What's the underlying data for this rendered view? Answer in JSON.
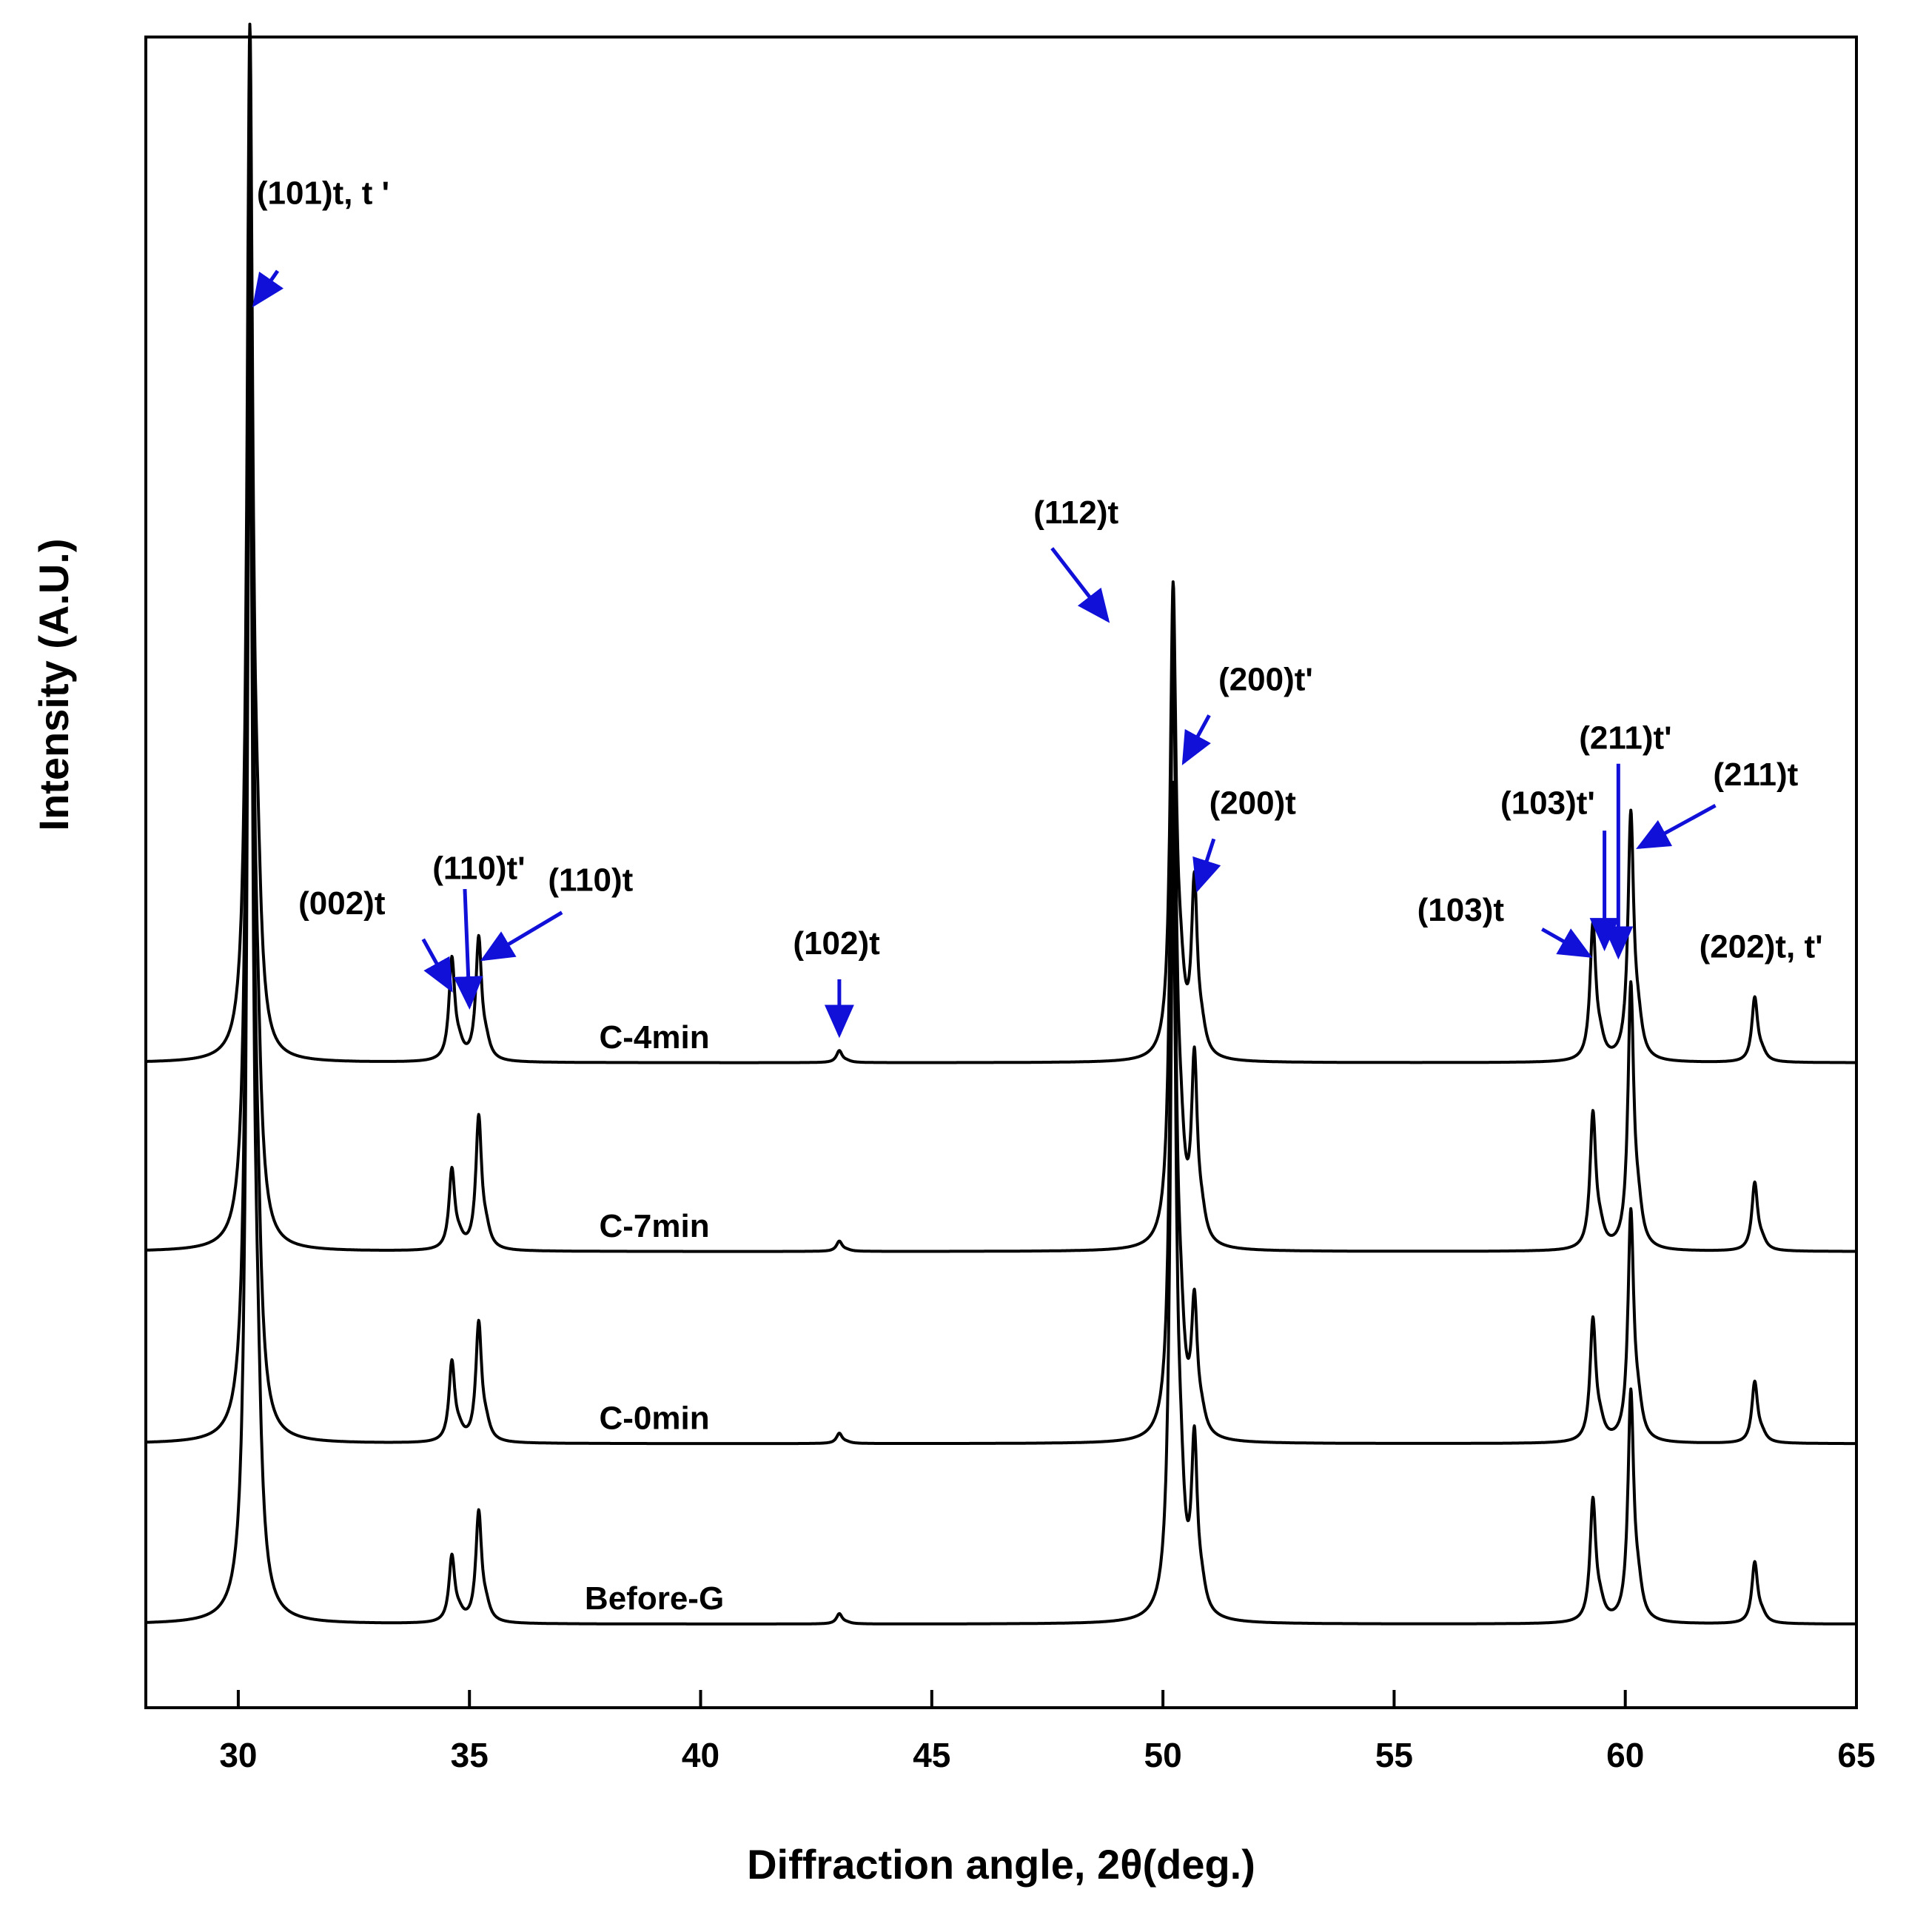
{
  "chart_data": {
    "type": "line",
    "title": "",
    "xlabel": "Diffraction angle, 2θ(deg.)",
    "ylabel": "Intensity (A.U.)",
    "xlim": [
      28,
      65
    ],
    "ylim": [
      0,
      1
    ],
    "xticks": [
      30,
      35,
      40,
      45,
      50,
      55,
      60,
      65
    ],
    "grid": false,
    "legend": "none",
    "colors": {
      "line": "#000000",
      "arrow": "#1010d8"
    },
    "series": [
      {
        "name": "C-4min",
        "baseline": 0.386,
        "label_x": 39.0,
        "peaks": [
          {
            "x": 30.25,
            "h": 0.6
          },
          {
            "x": 34.62,
            "h": 0.06
          },
          {
            "x": 35.2,
            "h": 0.072
          },
          {
            "x": 43.0,
            "h": 0.007
          },
          {
            "x": 50.22,
            "h": 0.275
          },
          {
            "x": 50.68,
            "h": 0.1
          },
          {
            "x": 59.3,
            "h": 0.08
          },
          {
            "x": 60.12,
            "h": 0.145
          },
          {
            "x": 62.8,
            "h": 0.038
          }
        ]
      },
      {
        "name": "C-7min",
        "baseline": 0.273,
        "label_x": 39.0,
        "peaks": [
          {
            "x": 30.25,
            "h": 0.64
          },
          {
            "x": 34.62,
            "h": 0.047
          },
          {
            "x": 35.2,
            "h": 0.078
          },
          {
            "x": 43.0,
            "h": 0.006
          },
          {
            "x": 50.22,
            "h": 0.35
          },
          {
            "x": 50.68,
            "h": 0.105
          },
          {
            "x": 59.3,
            "h": 0.08
          },
          {
            "x": 60.12,
            "h": 0.155
          },
          {
            "x": 62.8,
            "h": 0.04
          }
        ]
      },
      {
        "name": "C-0min",
        "baseline": 0.158,
        "label_x": 39.0,
        "peaks": [
          {
            "x": 30.25,
            "h": 0.7
          },
          {
            "x": 34.62,
            "h": 0.047
          },
          {
            "x": 35.2,
            "h": 0.07
          },
          {
            "x": 43.0,
            "h": 0.006
          },
          {
            "x": 50.22,
            "h": 0.38
          },
          {
            "x": 50.68,
            "h": 0.075
          },
          {
            "x": 59.3,
            "h": 0.072
          },
          {
            "x": 60.12,
            "h": 0.135
          },
          {
            "x": 62.8,
            "h": 0.036
          }
        ]
      },
      {
        "name": "Before-G",
        "baseline": 0.05,
        "label_x": 39.0,
        "peaks": [
          {
            "x": 30.25,
            "h": 0.75
          },
          {
            "x": 34.62,
            "h": 0.039
          },
          {
            "x": 35.2,
            "h": 0.065
          },
          {
            "x": 43.0,
            "h": 0.006
          },
          {
            "x": 50.22,
            "h": 0.44
          },
          {
            "x": 50.68,
            "h": 0.098
          },
          {
            "x": 59.3,
            "h": 0.072
          },
          {
            "x": 60.12,
            "h": 0.135
          },
          {
            "x": 62.8,
            "h": 0.036
          }
        ]
      }
    ],
    "annotations": [
      {
        "text": "(101)t, t '",
        "tx": 30.4,
        "ty": 0.9,
        "ax": 30.85,
        "ay": 0.86,
        "bx": 30.35,
        "by": 0.84
      },
      {
        "text": "(002)t",
        "tx": 31.3,
        "ty": 0.475,
        "ax": 34.0,
        "ay": 0.46,
        "bx": 34.6,
        "by": 0.43
      },
      {
        "text": "(110)t'",
        "tx": 34.2,
        "ty": 0.496,
        "ax": 34.9,
        "ay": 0.49,
        "bx": 35.0,
        "by": 0.42
      },
      {
        "text": "(110)t",
        "tx": 36.7,
        "ty": 0.489,
        "ax": 37.0,
        "ay": 0.476,
        "bx": 35.3,
        "by": 0.448
      },
      {
        "text": "(102)t",
        "tx": 42.0,
        "ty": 0.451,
        "ax": 43.0,
        "ay": 0.436,
        "bx": 43.0,
        "by": 0.403
      },
      {
        "text": "(112)t",
        "tx": 47.2,
        "ty": 0.709,
        "ax": 47.6,
        "ay": 0.694,
        "bx": 48.8,
        "by": 0.651
      },
      {
        "text": "(200)t'",
        "tx": 51.2,
        "ty": 0.609,
        "ax": 51.0,
        "ay": 0.594,
        "bx": 50.45,
        "by": 0.566
      },
      {
        "text": "(200)t",
        "tx": 51.0,
        "ty": 0.535,
        "ax": 51.1,
        "ay": 0.52,
        "bx": 50.75,
        "by": 0.49
      },
      {
        "text": "(103)t",
        "tx": 55.5,
        "ty": 0.471,
        "ax": 58.2,
        "ay": 0.466,
        "bx": 59.22,
        "by": 0.45
      },
      {
        "text": "(103)t'",
        "tx": 57.3,
        "ty": 0.535,
        "ax": 59.55,
        "ay": 0.525,
        "bx": 59.55,
        "by": 0.455
      },
      {
        "text": "(211)t'",
        "tx": 59.0,
        "ty": 0.574,
        "ax": 59.85,
        "ay": 0.565,
        "bx": 59.85,
        "by": 0.45
      },
      {
        "text": "(211)t",
        "tx": 61.9,
        "ty": 0.552,
        "ax": 61.95,
        "ay": 0.54,
        "bx": 60.3,
        "by": 0.515
      },
      {
        "text": "(202)t, t'",
        "tx": 61.6,
        "ty": 0.449,
        "ax": 0,
        "ay": 0,
        "bx": 0,
        "by": 0
      }
    ]
  }
}
